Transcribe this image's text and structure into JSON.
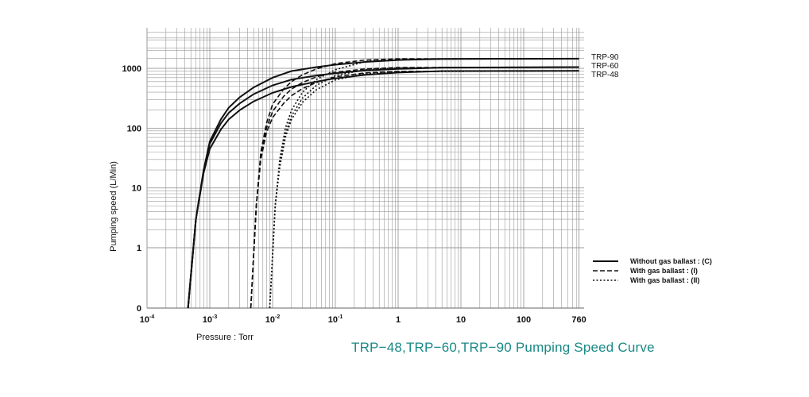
{
  "caption": "TRP−48,TRP−60,TRP−90 Pumping Speed Curve",
  "colors": {
    "caption": "#1a8a86",
    "grid": "#9a9a9a",
    "curve": "#111111"
  },
  "chart_data": {
    "type": "line",
    "xscale": "log",
    "yscale": "log-with-zero",
    "xlim": [
      0.0001,
      760
    ],
    "ylim": [
      0,
      1000
    ],
    "xlabel": "Pressure : Torr",
    "ylabel": "Pumping speed (L/Min)",
    "xticks": [
      {
        "value": 0.0001,
        "base": "10",
        "exp": "-4"
      },
      {
        "value": 0.001,
        "base": "10",
        "exp": "-3"
      },
      {
        "value": 0.01,
        "base": "10",
        "exp": "-2"
      },
      {
        "value": 0.1,
        "base": "10",
        "exp": "-1"
      },
      {
        "value": 1,
        "base": "1",
        "exp": ""
      },
      {
        "value": 10,
        "base": "10",
        "exp": ""
      },
      {
        "value": 100,
        "base": "100",
        "exp": ""
      },
      {
        "value": 760,
        "base": "760",
        "exp": ""
      }
    ],
    "yticks": [
      {
        "value": 0,
        "label": "0"
      },
      {
        "value": 1,
        "label": "1"
      },
      {
        "value": 10,
        "label": "10"
      },
      {
        "value": 100,
        "label": "100"
      },
      {
        "value": 1000,
        "label": "1000"
      }
    ],
    "grid": true,
    "series_labels": [
      "TRP-90",
      "TRP-60",
      "TRP-48"
    ],
    "legend": {
      "placement": "right",
      "entries": [
        {
          "label": "Without gas ballast : (C)",
          "style": "solid"
        },
        {
          "label": "With gas ballast : (I)",
          "style": "dashed"
        },
        {
          "label": "With gas ballast : (II)",
          "style": "dotted"
        }
      ]
    },
    "series": [
      {
        "model": "TRP-90",
        "mode": "C",
        "style": "solid",
        "points": [
          [
            0.00045,
            0.1
          ],
          [
            0.0006,
            3
          ],
          [
            0.0008,
            20
          ],
          [
            0.001,
            60
          ],
          [
            0.0015,
            140
          ],
          [
            0.002,
            220
          ],
          [
            0.003,
            330
          ],
          [
            0.005,
            480
          ],
          [
            0.01,
            700
          ],
          [
            0.02,
            900
          ],
          [
            0.05,
            1050
          ],
          [
            0.1,
            1150
          ],
          [
            0.3,
            1280
          ],
          [
            1,
            1380
          ],
          [
            5,
            1440
          ],
          [
            760,
            1450
          ]
        ]
      },
      {
        "model": "TRP-60",
        "mode": "C",
        "style": "solid",
        "points": [
          [
            0.00045,
            0.1
          ],
          [
            0.0006,
            3
          ],
          [
            0.0008,
            20
          ],
          [
            0.001,
            55
          ],
          [
            0.0015,
            120
          ],
          [
            0.002,
            180
          ],
          [
            0.003,
            260
          ],
          [
            0.005,
            370
          ],
          [
            0.01,
            520
          ],
          [
            0.02,
            650
          ],
          [
            0.05,
            760
          ],
          [
            0.1,
            830
          ],
          [
            0.3,
            920
          ],
          [
            1,
            980
          ],
          [
            5,
            1030
          ],
          [
            760,
            1050
          ]
        ]
      },
      {
        "model": "TRP-48",
        "mode": "C",
        "style": "solid",
        "points": [
          [
            0.00045,
            0.1
          ],
          [
            0.0006,
            3
          ],
          [
            0.0008,
            18
          ],
          [
            0.001,
            45
          ],
          [
            0.0015,
            95
          ],
          [
            0.002,
            140
          ],
          [
            0.003,
            200
          ],
          [
            0.005,
            280
          ],
          [
            0.01,
            390
          ],
          [
            0.02,
            490
          ],
          [
            0.05,
            600
          ],
          [
            0.1,
            680
          ],
          [
            0.3,
            780
          ],
          [
            1,
            850
          ],
          [
            5,
            900
          ],
          [
            760,
            910
          ]
        ]
      },
      {
        "model": "TRP-90",
        "mode": "I",
        "style": "dashed",
        "points": [
          [
            0.0045,
            0.1
          ],
          [
            0.0055,
            5
          ],
          [
            0.0065,
            40
          ],
          [
            0.008,
            120
          ],
          [
            0.01,
            250
          ],
          [
            0.015,
            450
          ],
          [
            0.02,
            600
          ],
          [
            0.03,
            780
          ],
          [
            0.05,
            980
          ],
          [
            0.1,
            1200
          ],
          [
            0.3,
            1380
          ],
          [
            1,
            1440
          ],
          [
            760,
            1450
          ]
        ]
      },
      {
        "model": "TRP-60",
        "mode": "I",
        "style": "dashed",
        "points": [
          [
            0.0045,
            0.1
          ],
          [
            0.0055,
            5
          ],
          [
            0.0065,
            35
          ],
          [
            0.008,
            100
          ],
          [
            0.01,
            190
          ],
          [
            0.015,
            340
          ],
          [
            0.02,
            450
          ],
          [
            0.03,
            580
          ],
          [
            0.05,
            720
          ],
          [
            0.1,
            860
          ],
          [
            0.3,
            980
          ],
          [
            1,
            1030
          ],
          [
            760,
            1050
          ]
        ]
      },
      {
        "model": "TRP-48",
        "mode": "I",
        "style": "dashed",
        "points": [
          [
            0.0045,
            0.1
          ],
          [
            0.0055,
            5
          ],
          [
            0.0065,
            30
          ],
          [
            0.008,
            85
          ],
          [
            0.01,
            150
          ],
          [
            0.015,
            260
          ],
          [
            0.02,
            350
          ],
          [
            0.03,
            460
          ],
          [
            0.05,
            580
          ],
          [
            0.1,
            720
          ],
          [
            0.3,
            840
          ],
          [
            1,
            890
          ],
          [
            760,
            910
          ]
        ]
      },
      {
        "model": "TRP-90",
        "mode": "II",
        "style": "dotted",
        "points": [
          [
            0.009,
            0.1
          ],
          [
            0.011,
            5
          ],
          [
            0.013,
            30
          ],
          [
            0.016,
            100
          ],
          [
            0.02,
            200
          ],
          [
            0.03,
            400
          ],
          [
            0.05,
            650
          ],
          [
            0.1,
            950
          ],
          [
            0.3,
            1300
          ],
          [
            1,
            1420
          ],
          [
            760,
            1450
          ]
        ]
      },
      {
        "model": "TRP-60",
        "mode": "II",
        "style": "dotted",
        "points": [
          [
            0.009,
            0.1
          ],
          [
            0.011,
            5
          ],
          [
            0.013,
            25
          ],
          [
            0.016,
            80
          ],
          [
            0.02,
            160
          ],
          [
            0.03,
            320
          ],
          [
            0.05,
            520
          ],
          [
            0.1,
            760
          ],
          [
            0.3,
            950
          ],
          [
            1,
            1020
          ],
          [
            760,
            1050
          ]
        ]
      },
      {
        "model": "TRP-48",
        "mode": "II",
        "style": "dotted",
        "points": [
          [
            0.009,
            0.1
          ],
          [
            0.011,
            5
          ],
          [
            0.013,
            22
          ],
          [
            0.016,
            70
          ],
          [
            0.02,
            140
          ],
          [
            0.03,
            270
          ],
          [
            0.05,
            440
          ],
          [
            0.1,
            640
          ],
          [
            0.3,
            820
          ],
          [
            1,
            880
          ],
          [
            760,
            910
          ]
        ]
      }
    ]
  }
}
